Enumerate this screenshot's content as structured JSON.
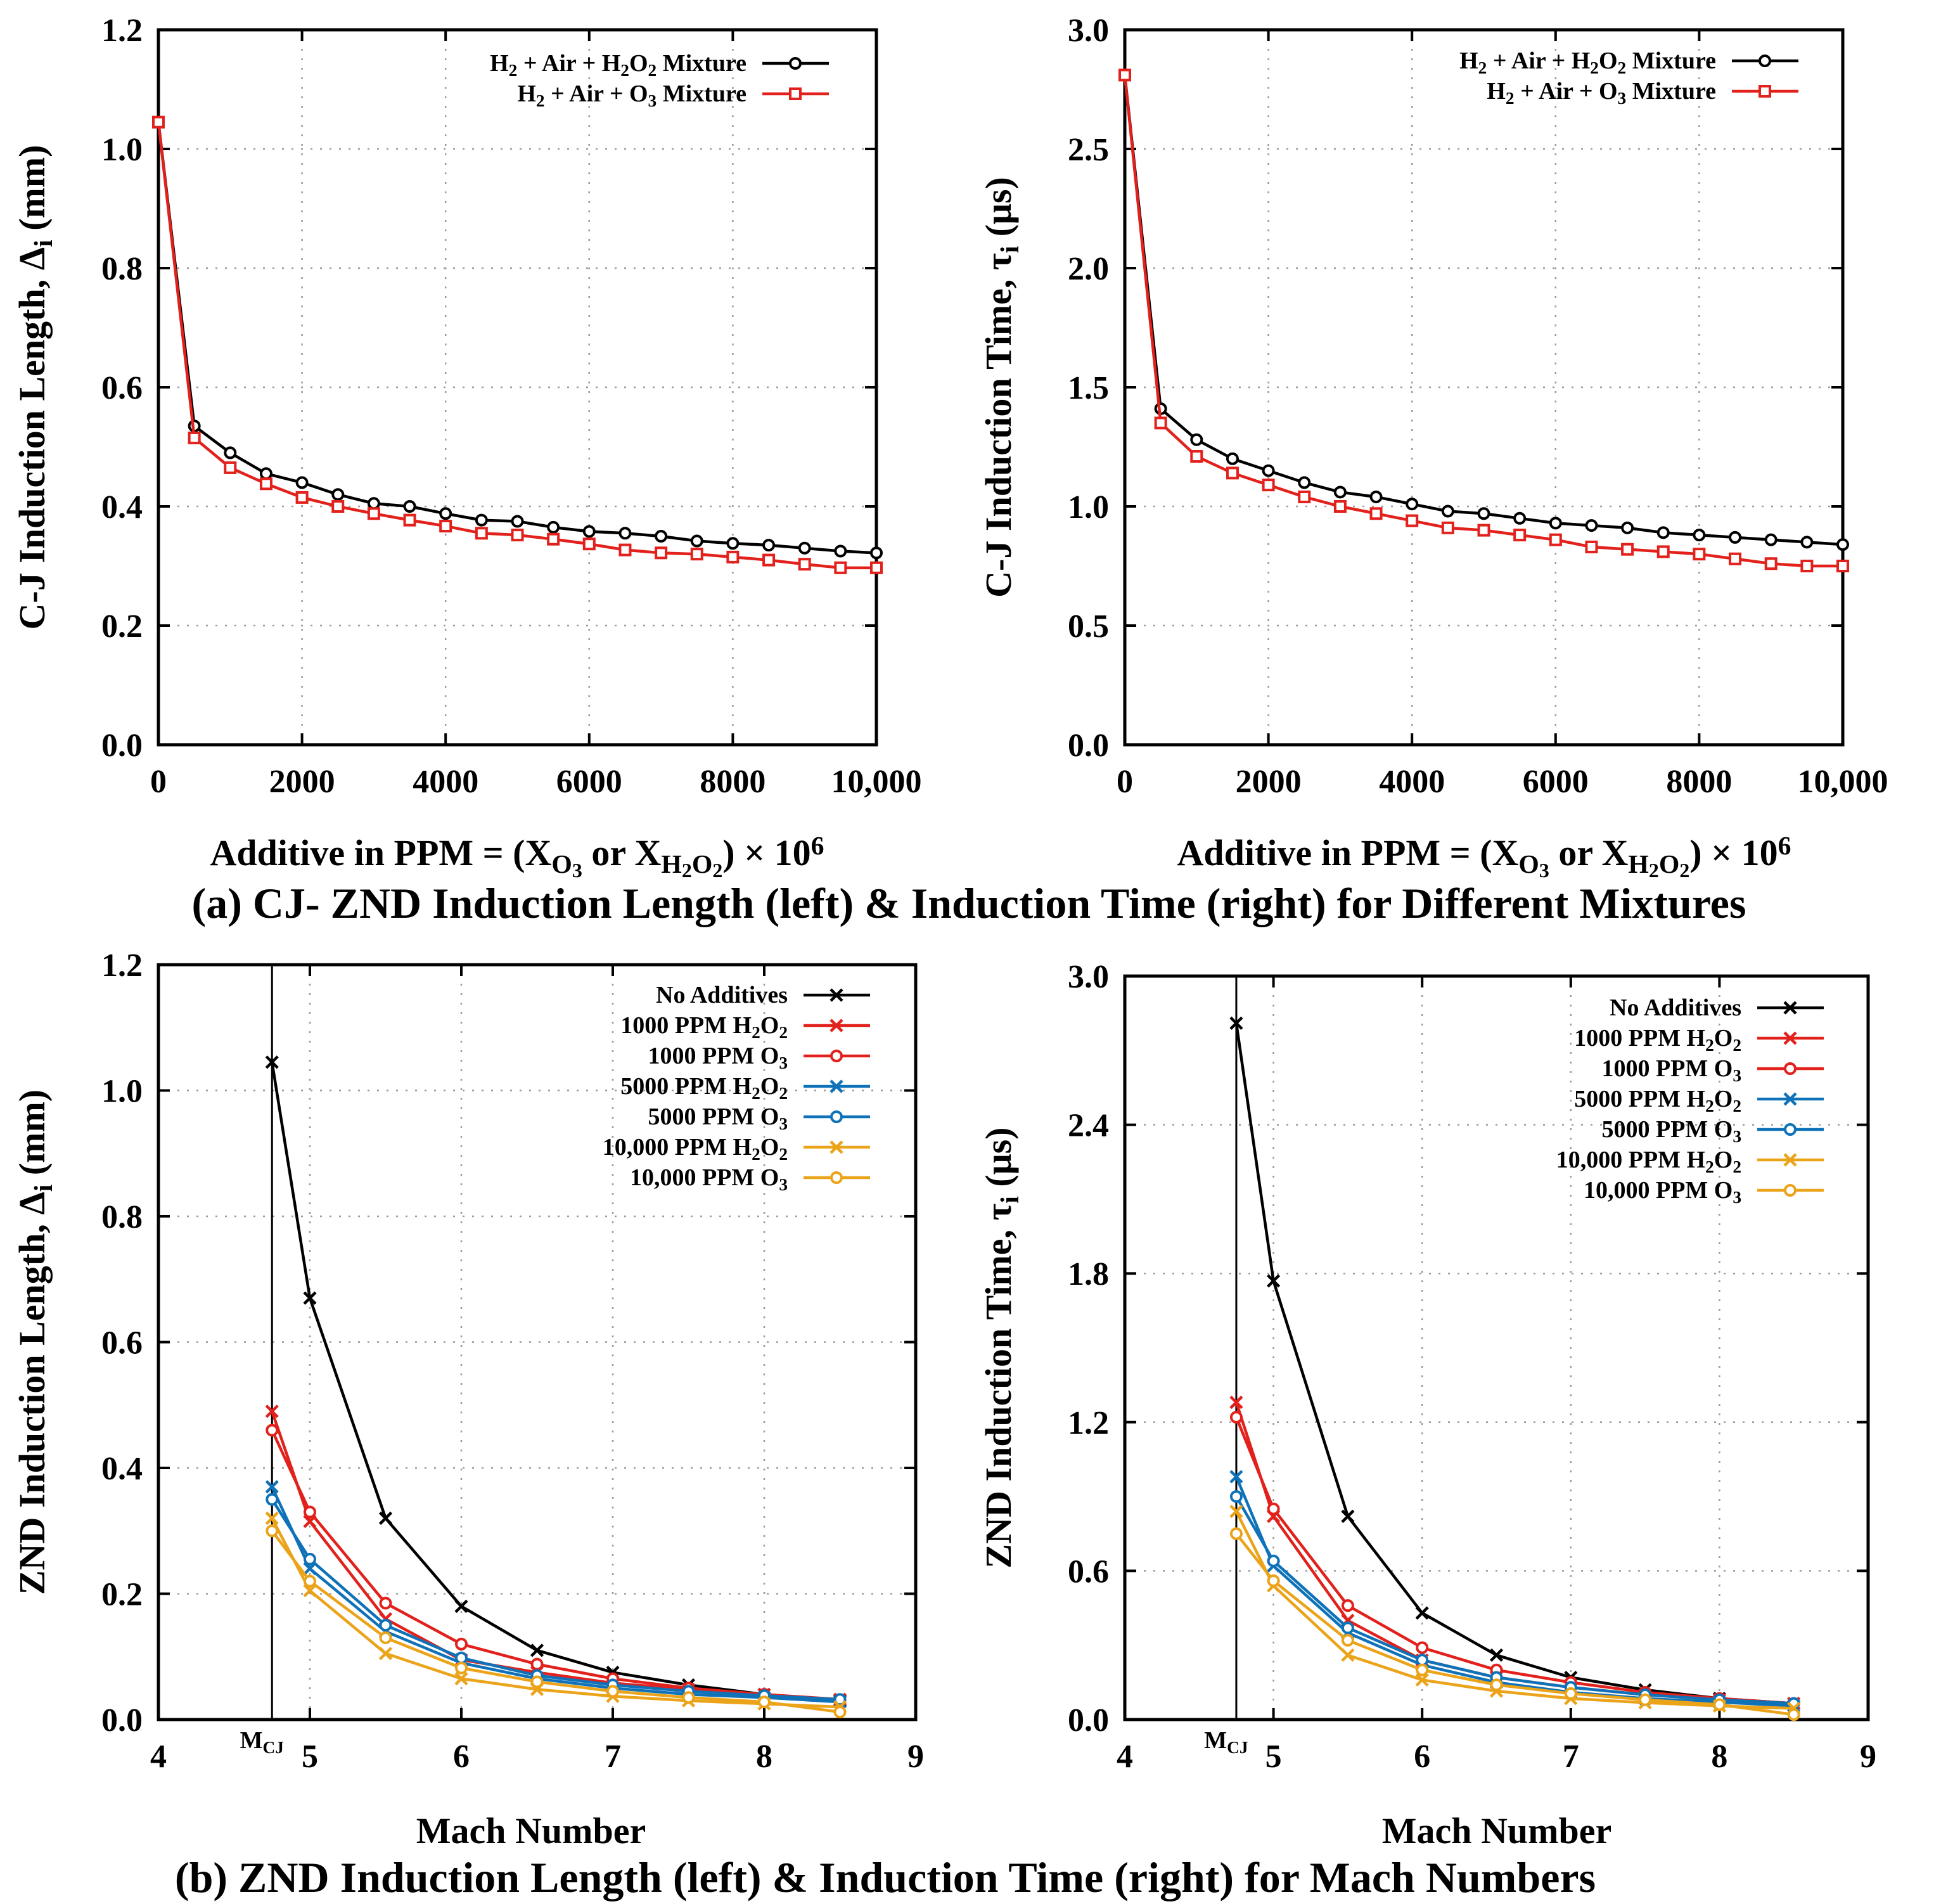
{
  "captions": {
    "a": "(a) CJ- ZND Induction Length (left) & Induction Time (right) for Different Mixtures",
    "b": "(b) ZND Induction Length (left) & Induction Time (right) for Mach Numbers"
  },
  "xlabel_ppm": {
    "pre": "Additive in PPM = (X",
    "o3_sub": "O",
    "o3_subsub": "3",
    "mid": " or X",
    "h2o2_sub1": "H",
    "h2o2_subsub1": "2",
    "h2o2_sub2": "O",
    "h2o2_subsub2": "2",
    "close": ")",
    "times": " × 10",
    "exp": "6"
  },
  "mcj_label": {
    "main": "M",
    "sub": "CJ"
  },
  "colors": {
    "black": "#000000",
    "red": "#e2211c",
    "blue": "#0f72b8",
    "orange": "#eba319"
  },
  "chart_data": [
    {
      "id": "chart-a-length",
      "type": "line",
      "ylabel": {
        "main": "C-J Induction Length, Δ",
        "sub": "i",
        "unit": " (mm)"
      },
      "xlim": [
        0,
        10000
      ],
      "ylim": [
        0,
        1.2
      ],
      "xticks": [
        0,
        2000,
        4000,
        6000,
        8000,
        10000
      ],
      "xtick_labels": [
        "0",
        "2000",
        "4000",
        "6000",
        "8000",
        "10,000"
      ],
      "yticks": [
        0,
        0.2,
        0.4,
        0.6,
        0.8,
        1.0,
        1.2
      ],
      "ytick_labels": [
        "0.0",
        "0.2",
        "0.4",
        "0.6",
        "0.8",
        "1.0",
        "1.2"
      ],
      "legend_position": "top-right",
      "series": [
        {
          "name": "H2 + Air + H2O2 Mixture",
          "legend": [
            [
              "H",
              ""
            ],
            [
              "2",
              "sub"
            ],
            [
              " + Air + H",
              ""
            ],
            [
              "2",
              "sub"
            ],
            [
              "O",
              ""
            ],
            [
              "2",
              "sub"
            ],
            [
              " Mixture",
              ""
            ]
          ],
          "color": "#000000",
          "marker": "circle",
          "x": [
            0,
            500,
            1000,
            1500,
            2000,
            2500,
            3000,
            3500,
            4000,
            4500,
            5000,
            5500,
            6000,
            6500,
            7000,
            7500,
            8000,
            8500,
            9000,
            9500,
            10000
          ],
          "values": [
            1.045,
            0.535,
            0.49,
            0.455,
            0.44,
            0.42,
            0.405,
            0.4,
            0.388,
            0.377,
            0.375,
            0.365,
            0.358,
            0.355,
            0.35,
            0.342,
            0.338,
            0.335,
            0.33,
            0.325,
            0.322
          ]
        },
        {
          "name": "H2 + Air + O3 Mixture",
          "legend": [
            [
              "H",
              ""
            ],
            [
              "2",
              "sub"
            ],
            [
              " + Air + O",
              ""
            ],
            [
              "3",
              "sub"
            ],
            [
              " Mixture",
              ""
            ]
          ],
          "color": "#e2211c",
          "marker": "square",
          "x": [
            0,
            500,
            1000,
            1500,
            2000,
            2500,
            3000,
            3500,
            4000,
            4500,
            5000,
            5500,
            6000,
            6500,
            7000,
            7500,
            8000,
            8500,
            9000,
            9500,
            10000
          ],
          "values": [
            1.045,
            0.515,
            0.465,
            0.438,
            0.415,
            0.4,
            0.388,
            0.377,
            0.367,
            0.355,
            0.352,
            0.345,
            0.337,
            0.327,
            0.322,
            0.32,
            0.315,
            0.31,
            0.303,
            0.297,
            0.297
          ]
        }
      ]
    },
    {
      "id": "chart-a-time",
      "type": "line",
      "ylabel": {
        "main": "C-J Induction Time, τ",
        "sub": "i",
        "unit": " (μs)"
      },
      "xlim": [
        0,
        10000
      ],
      "ylim": [
        0,
        3.0
      ],
      "xticks": [
        0,
        2000,
        4000,
        6000,
        8000,
        10000
      ],
      "xtick_labels": [
        "0",
        "2000",
        "4000",
        "6000",
        "8000",
        "10,000"
      ],
      "yticks": [
        0,
        0.5,
        1.0,
        1.5,
        2.0,
        2.5,
        3.0
      ],
      "ytick_labels": [
        "0.0",
        "0.5",
        "1.0",
        "1.5",
        "2.0",
        "2.5",
        "3.0"
      ],
      "legend_position": "top-right",
      "series": [
        {
          "name": "H2 + Air + H2O2 Mixture",
          "legend": [
            [
              "H",
              ""
            ],
            [
              "2",
              "sub"
            ],
            [
              " + Air + H",
              ""
            ],
            [
              "2",
              "sub"
            ],
            [
              "O",
              ""
            ],
            [
              "2",
              "sub"
            ],
            [
              " Mixture",
              ""
            ]
          ],
          "color": "#000000",
          "marker": "circle",
          "x": [
            0,
            500,
            1000,
            1500,
            2000,
            2500,
            3000,
            3500,
            4000,
            4500,
            5000,
            5500,
            6000,
            6500,
            7000,
            7500,
            8000,
            8500,
            9000,
            9500,
            10000
          ],
          "values": [
            2.81,
            1.41,
            1.28,
            1.2,
            1.15,
            1.1,
            1.06,
            1.04,
            1.01,
            0.98,
            0.97,
            0.95,
            0.93,
            0.92,
            0.91,
            0.89,
            0.88,
            0.87,
            0.86,
            0.85,
            0.84
          ]
        },
        {
          "name": "H2 + Air + O3 Mixture",
          "legend": [
            [
              "H",
              ""
            ],
            [
              "2",
              "sub"
            ],
            [
              " + Air + O",
              ""
            ],
            [
              "3",
              "sub"
            ],
            [
              " Mixture",
              ""
            ]
          ],
          "color": "#e2211c",
          "marker": "square",
          "x": [
            0,
            500,
            1000,
            1500,
            2000,
            2500,
            3000,
            3500,
            4000,
            4500,
            5000,
            5500,
            6000,
            6500,
            7000,
            7500,
            8000,
            8500,
            9000,
            9500,
            10000
          ],
          "values": [
            2.81,
            1.35,
            1.21,
            1.14,
            1.09,
            1.04,
            1.0,
            0.97,
            0.94,
            0.91,
            0.9,
            0.88,
            0.86,
            0.83,
            0.82,
            0.81,
            0.8,
            0.78,
            0.76,
            0.75,
            0.75
          ]
        }
      ]
    },
    {
      "id": "chart-b-length",
      "type": "line",
      "ylabel": {
        "main": "ZND Induction Length, Δ",
        "sub": "i",
        "unit": " (mm)"
      },
      "xlabel": "Mach Number",
      "xlim": [
        4,
        9
      ],
      "ylim": [
        0,
        1.2
      ],
      "mcj": 4.75,
      "xticks": [
        4,
        5,
        6,
        7,
        8,
        9
      ],
      "xtick_labels": [
        "4",
        "5",
        "6",
        "7",
        "8",
        "9"
      ],
      "yticks": [
        0,
        0.2,
        0.4,
        0.6,
        0.8,
        1.0,
        1.2
      ],
      "ytick_labels": [
        "0.0",
        "0.2",
        "0.4",
        "0.6",
        "0.8",
        "1.0",
        "1.2"
      ],
      "legend_position": "top-right",
      "series": [
        {
          "name": "No Additives",
          "legend": [
            [
              "No Additives",
              ""
            ]
          ],
          "color": "#000000",
          "marker": "x",
          "x": [
            4.75,
            5,
            5.5,
            6,
            6.5,
            7,
            7.5,
            8,
            8.5
          ],
          "values": [
            1.045,
            0.67,
            0.32,
            0.18,
            0.11,
            0.075,
            0.055,
            0.04,
            0.03
          ]
        },
        {
          "name": "1000 PPM H2O2",
          "legend": [
            [
              "1000 PPM H",
              ""
            ],
            [
              "2",
              "sub"
            ],
            [
              "O",
              ""
            ],
            [
              "2",
              "sub"
            ]
          ],
          "color": "#e2211c",
          "marker": "x",
          "x": [
            4.75,
            5,
            5.5,
            6,
            6.5,
            7,
            7.5,
            8,
            8.5
          ],
          "values": [
            0.49,
            0.315,
            0.16,
            0.095,
            0.075,
            0.058,
            0.048,
            0.04,
            0.032
          ]
        },
        {
          "name": "1000 PPM O3",
          "legend": [
            [
              "1000 PPM O",
              ""
            ],
            [
              "3",
              "sub"
            ]
          ],
          "color": "#e2211c",
          "marker": "circle",
          "x": [
            4.75,
            5,
            5.5,
            6,
            6.5,
            7,
            7.5,
            8,
            8.5
          ],
          "values": [
            0.46,
            0.33,
            0.185,
            0.12,
            0.088,
            0.065,
            0.05,
            0.04,
            0.03
          ]
        },
        {
          "name": "5000 PPM H2O2",
          "legend": [
            [
              "5000 PPM H",
              ""
            ],
            [
              "2",
              "sub"
            ],
            [
              "O",
              ""
            ],
            [
              "2",
              "sub"
            ]
          ],
          "color": "#0f72b8",
          "marker": "x",
          "x": [
            4.75,
            5,
            5.5,
            6,
            6.5,
            7,
            7.5,
            8,
            8.5
          ],
          "values": [
            0.37,
            0.24,
            0.14,
            0.09,
            0.065,
            0.05,
            0.04,
            0.035,
            0.028
          ]
        },
        {
          "name": "5000 PPM O3",
          "legend": [
            [
              "5000 PPM O",
              ""
            ],
            [
              "3",
              "sub"
            ]
          ],
          "color": "#0f72b8",
          "marker": "circle",
          "x": [
            4.75,
            5,
            5.5,
            6,
            6.5,
            7,
            7.5,
            8,
            8.5
          ],
          "values": [
            0.35,
            0.255,
            0.15,
            0.098,
            0.07,
            0.055,
            0.045,
            0.038,
            0.032
          ]
        },
        {
          "name": "10,000 PPM H2O2",
          "legend": [
            [
              "10,000 PPM H",
              ""
            ],
            [
              "2",
              "sub"
            ],
            [
              "O",
              ""
            ],
            [
              "2",
              "sub"
            ]
          ],
          "color": "#eba319",
          "marker": "x",
          "x": [
            4.75,
            5,
            5.5,
            6,
            6.5,
            7,
            7.5,
            8,
            8.5
          ],
          "values": [
            0.32,
            0.205,
            0.105,
            0.065,
            0.048,
            0.037,
            0.03,
            0.025,
            0.02
          ]
        },
        {
          "name": "10,000 PPM O3",
          "legend": [
            [
              "10,000 PPM O",
              ""
            ],
            [
              "3",
              "sub"
            ]
          ],
          "color": "#eba319",
          "marker": "circle",
          "x": [
            4.75,
            5,
            5.5,
            6,
            6.5,
            7,
            7.5,
            8,
            8.5
          ],
          "values": [
            0.3,
            0.22,
            0.13,
            0.082,
            0.06,
            0.045,
            0.035,
            0.028,
            0.012
          ]
        }
      ]
    },
    {
      "id": "chart-b-time",
      "type": "line",
      "ylabel": {
        "main": "ZND Induction Time, τ",
        "sub": "i",
        "unit": " (μs)"
      },
      "xlabel": "Mach Number",
      "xlim": [
        4,
        9
      ],
      "ylim": [
        0,
        3.0
      ],
      "mcj": 4.75,
      "xticks": [
        4,
        5,
        6,
        7,
        8,
        9
      ],
      "xtick_labels": [
        "4",
        "5",
        "6",
        "7",
        "8",
        "9"
      ],
      "yticks": [
        0,
        0.6,
        1.2,
        1.8,
        2.4,
        3.0
      ],
      "ytick_labels": [
        "0.0",
        "0.6",
        "1.2",
        "1.8",
        "2.4",
        "3.0"
      ],
      "legend_position": "top-right",
      "series": [
        {
          "name": "No Additives",
          "legend": [
            [
              "No Additives",
              ""
            ]
          ],
          "color": "#000000",
          "marker": "x",
          "x": [
            4.75,
            5,
            5.5,
            6,
            6.5,
            7,
            7.5,
            8,
            8.5
          ],
          "values": [
            2.81,
            1.77,
            0.82,
            0.43,
            0.26,
            0.17,
            0.12,
            0.085,
            0.065
          ]
        },
        {
          "name": "1000 PPM H2O2",
          "legend": [
            [
              "1000 PPM H",
              ""
            ],
            [
              "2",
              "sub"
            ],
            [
              "O",
              ""
            ],
            [
              "2",
              "sub"
            ]
          ],
          "color": "#e2211c",
          "marker": "x",
          "x": [
            4.75,
            5,
            5.5,
            6,
            6.5,
            7,
            7.5,
            8,
            8.5
          ],
          "values": [
            1.28,
            0.82,
            0.4,
            0.24,
            0.17,
            0.13,
            0.1,
            0.08,
            0.065
          ]
        },
        {
          "name": "1000 PPM O3",
          "legend": [
            [
              "1000 PPM O",
              ""
            ],
            [
              "3",
              "sub"
            ]
          ],
          "color": "#e2211c",
          "marker": "circle",
          "x": [
            4.75,
            5,
            5.5,
            6,
            6.5,
            7,
            7.5,
            8,
            8.5
          ],
          "values": [
            1.22,
            0.85,
            0.46,
            0.29,
            0.2,
            0.15,
            0.11,
            0.085,
            0.065
          ]
        },
        {
          "name": "5000 PPM H2O2",
          "legend": [
            [
              "5000 PPM H",
              ""
            ],
            [
              "2",
              "sub"
            ],
            [
              "O",
              ""
            ],
            [
              "2",
              "sub"
            ]
          ],
          "color": "#0f72b8",
          "marker": "x",
          "x": [
            4.75,
            5,
            5.5,
            6,
            6.5,
            7,
            7.5,
            8,
            8.5
          ],
          "values": [
            0.98,
            0.62,
            0.35,
            0.22,
            0.15,
            0.11,
            0.085,
            0.07,
            0.055
          ]
        },
        {
          "name": "5000 PPM O3",
          "legend": [
            [
              "5000 PPM O",
              ""
            ],
            [
              "3",
              "sub"
            ]
          ],
          "color": "#0f72b8",
          "marker": "circle",
          "x": [
            4.75,
            5,
            5.5,
            6,
            6.5,
            7,
            7.5,
            8,
            8.5
          ],
          "values": [
            0.9,
            0.64,
            0.37,
            0.24,
            0.17,
            0.13,
            0.1,
            0.08,
            0.065
          ]
        },
        {
          "name": "10,000 PPM H2O2",
          "legend": [
            [
              "10,000 PPM H",
              ""
            ],
            [
              "2",
              "sub"
            ],
            [
              "O",
              ""
            ],
            [
              "2",
              "sub"
            ]
          ],
          "color": "#eba319",
          "marker": "x",
          "x": [
            4.75,
            5,
            5.5,
            6,
            6.5,
            7,
            7.5,
            8,
            8.5
          ],
          "values": [
            0.84,
            0.54,
            0.26,
            0.16,
            0.115,
            0.085,
            0.068,
            0.055,
            0.045
          ]
        },
        {
          "name": "10,000 PPM O3",
          "legend": [
            [
              "10,000 PPM O",
              ""
            ],
            [
              "3",
              "sub"
            ]
          ],
          "color": "#eba319",
          "marker": "circle",
          "x": [
            4.75,
            5,
            5.5,
            6,
            6.5,
            7,
            7.5,
            8,
            8.5
          ],
          "values": [
            0.75,
            0.56,
            0.32,
            0.2,
            0.14,
            0.105,
            0.08,
            0.06,
            0.02
          ]
        }
      ]
    }
  ]
}
